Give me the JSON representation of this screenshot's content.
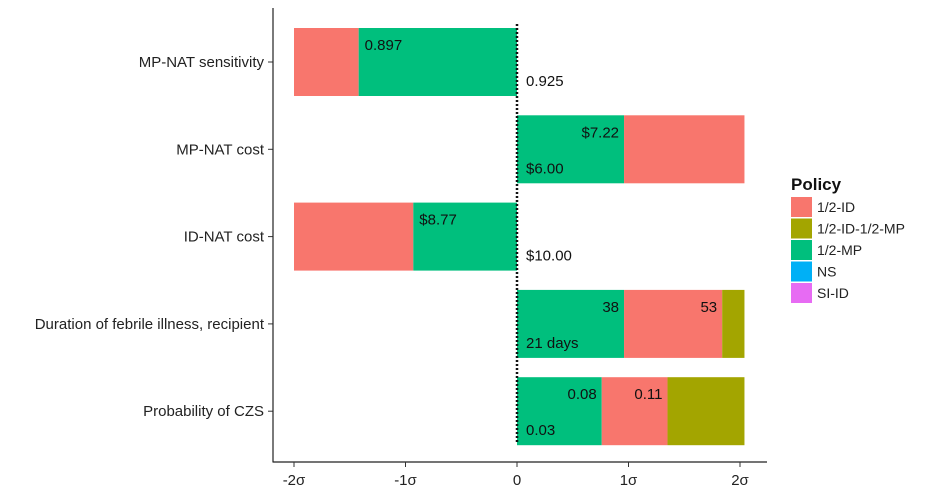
{
  "chart_data": {
    "type": "bar",
    "orientation": "horizontal",
    "title": "",
    "xlabel": "",
    "ylabel": "",
    "xlim": [
      -2.2,
      2.2
    ],
    "xticks": [
      {
        "value": -2,
        "label": "-2σ"
      },
      {
        "value": -1,
        "label": "-1σ"
      },
      {
        "value": 0,
        "label": "0"
      },
      {
        "value": 1,
        "label": "1σ"
      },
      {
        "value": 2,
        "label": "2σ"
      }
    ],
    "legend": {
      "title": "Policy",
      "position": "right",
      "items": [
        {
          "name": "1/2-ID",
          "color": "#F8766D"
        },
        {
          "name": "1/2-ID-1/2-MP",
          "color": "#A3A500"
        },
        {
          "name": "1/2-MP",
          "color": "#00BF7D"
        },
        {
          "name": "NS",
          "color": "#00B0F6"
        },
        {
          "name": "SI-ID",
          "color": "#E76BF3"
        }
      ]
    },
    "categories": [
      {
        "label": "MP-NAT sensitivity",
        "baseline_label": "0.925",
        "segments": [
          {
            "policy": "1/2-ID",
            "start": -2.0,
            "end": -1.42
          },
          {
            "policy": "1/2-MP",
            "start": -1.42,
            "end": 0.0,
            "label": "0.897"
          }
        ]
      },
      {
        "label": "MP-NAT cost",
        "baseline_label": "$6.00",
        "segments": [
          {
            "policy": "1/2-MP",
            "start": 0.0,
            "end": 0.96,
            "label": "$7.22"
          },
          {
            "policy": "1/2-ID",
            "start": 0.96,
            "end": 2.04
          }
        ]
      },
      {
        "label": "ID-NAT cost",
        "baseline_label": "$10.00",
        "segments": [
          {
            "policy": "1/2-ID",
            "start": -2.0,
            "end": -0.93
          },
          {
            "policy": "1/2-MP",
            "start": -0.93,
            "end": 0.0,
            "label": "$8.77"
          }
        ]
      },
      {
        "label": "Duration of febrile illness, recipient",
        "baseline_label": "21 days",
        "segments": [
          {
            "policy": "1/2-MP",
            "start": 0.0,
            "end": 0.96,
            "label": "38"
          },
          {
            "policy": "1/2-ID",
            "start": 0.96,
            "end": 1.84,
            "label": "53"
          },
          {
            "policy": "1/2-ID-1/2-MP",
            "start": 1.84,
            "end": 2.04
          }
        ]
      },
      {
        "label": "Probability of CZS",
        "baseline_label": "0.03",
        "segments": [
          {
            "policy": "1/2-MP",
            "start": 0.0,
            "end": 0.76,
            "label": "0.08"
          },
          {
            "policy": "1/2-ID",
            "start": 0.76,
            "end": 1.35,
            "label": "0.11"
          },
          {
            "policy": "1/2-ID-1/2-MP",
            "start": 1.35,
            "end": 2.04
          }
        ]
      }
    ]
  }
}
